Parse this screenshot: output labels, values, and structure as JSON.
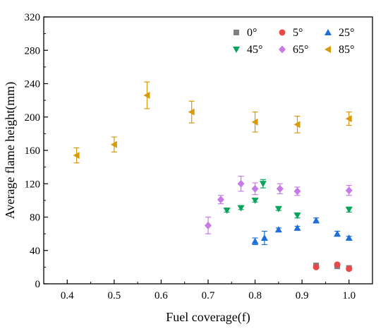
{
  "chart_data": {
    "type": "scatter",
    "title": "",
    "xlabel": "Fuel coverage(f)",
    "ylabel": "Average flame height(mm)",
    "xlim": [
      0.35,
      1.05
    ],
    "ylim": [
      0,
      320
    ],
    "xticks": [
      0.4,
      0.5,
      0.6,
      0.7,
      0.8,
      0.9,
      1.0
    ],
    "yticks": [
      0,
      40,
      80,
      120,
      160,
      200,
      240,
      280,
      320
    ],
    "x_tick_labels": [
      "0.4",
      "0.5",
      "0.6",
      "0.7",
      "0.8",
      "0.9",
      "1.0"
    ],
    "y_tick_labels": [
      "0",
      "40",
      "80",
      "120",
      "160",
      "200",
      "240",
      "280",
      "320"
    ],
    "legend_position": "top-right",
    "grid": false,
    "series": [
      {
        "name": "0°",
        "marker": "square",
        "color": "#7f7f7f",
        "points": [
          {
            "x": 0.93,
            "y": 22,
            "err": 1
          },
          {
            "x": 0.975,
            "y": 21,
            "err": 1
          },
          {
            "x": 1.0,
            "y": 19,
            "err": 1
          }
        ]
      },
      {
        "name": "5°",
        "marker": "circle",
        "color": "#e84a4a",
        "points": [
          {
            "x": 0.93,
            "y": 20,
            "err": 1
          },
          {
            "x": 0.975,
            "y": 23,
            "err": 1
          },
          {
            "x": 1.0,
            "y": 18,
            "err": 1
          }
        ]
      },
      {
        "name": "25°",
        "marker": "triangle-up",
        "color": "#1f6fd8",
        "points": [
          {
            "x": 0.8,
            "y": 51,
            "err": 4
          },
          {
            "x": 0.82,
            "y": 55,
            "err": 8
          },
          {
            "x": 0.85,
            "y": 65,
            "err": 2
          },
          {
            "x": 0.89,
            "y": 67,
            "err": 2
          },
          {
            "x": 0.93,
            "y": 76,
            "err": 3
          },
          {
            "x": 0.975,
            "y": 60,
            "err": 3
          },
          {
            "x": 1.0,
            "y": 55,
            "err": 2
          }
        ]
      },
      {
        "name": "45°",
        "marker": "triangle-down",
        "color": "#0aa55c",
        "points": [
          {
            "x": 0.74,
            "y": 88,
            "err": 2
          },
          {
            "x": 0.77,
            "y": 91,
            "err": 2
          },
          {
            "x": 0.8,
            "y": 100,
            "err": 2
          },
          {
            "x": 0.817,
            "y": 120,
            "err": 5
          },
          {
            "x": 0.85,
            "y": 90,
            "err": 2
          },
          {
            "x": 0.89,
            "y": 82,
            "err": 3
          },
          {
            "x": 1.0,
            "y": 89,
            "err": 3
          }
        ]
      },
      {
        "name": "65°",
        "marker": "diamond",
        "color": "#c77be8",
        "points": [
          {
            "x": 0.7,
            "y": 70,
            "err": 10
          },
          {
            "x": 0.727,
            "y": 101,
            "err": 5
          },
          {
            "x": 0.77,
            "y": 120,
            "err": 9
          },
          {
            "x": 0.8,
            "y": 114,
            "err": 7
          },
          {
            "x": 0.853,
            "y": 114,
            "err": 6
          },
          {
            "x": 0.89,
            "y": 111,
            "err": 5
          },
          {
            "x": 1.0,
            "y": 112,
            "err": 6
          }
        ]
      },
      {
        "name": "85°",
        "marker": "triangle-left",
        "color": "#d99a0a",
        "points": [
          {
            "x": 0.42,
            "y": 154,
            "err": 9
          },
          {
            "x": 0.5,
            "y": 167,
            "err": 9
          },
          {
            "x": 0.57,
            "y": 226,
            "err": 16
          },
          {
            "x": 0.665,
            "y": 206,
            "err": 13
          },
          {
            "x": 0.8,
            "y": 194,
            "err": 12
          },
          {
            "x": 0.89,
            "y": 191,
            "err": 10
          },
          {
            "x": 1.0,
            "y": 198,
            "err": 8
          }
        ]
      }
    ]
  }
}
